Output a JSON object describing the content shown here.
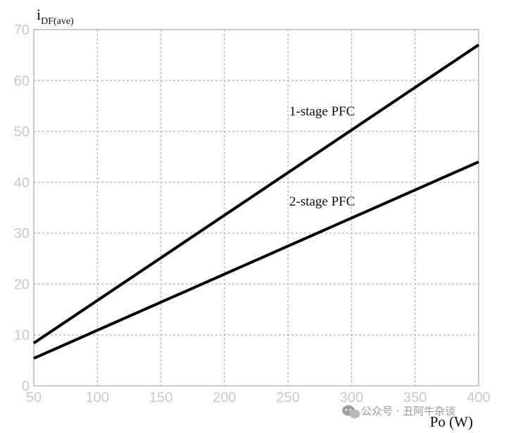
{
  "chart_data": {
    "type": "line",
    "ylabel_main": "i",
    "ylabel_sub": "DF(ave)",
    "xlabel": "Po (W)",
    "xlim": [
      50,
      400
    ],
    "ylim": [
      0,
      70
    ],
    "x_ticks": [
      50,
      100,
      150,
      200,
      250,
      300,
      350,
      400
    ],
    "y_ticks": [
      0,
      10,
      20,
      30,
      40,
      50,
      60,
      70
    ],
    "grid": true,
    "series": [
      {
        "name": "1-stage PFC",
        "x": [
          50,
          400
        ],
        "y": [
          8.4,
          67.0
        ],
        "color": "#000000"
      },
      {
        "name": "2-stage PFC",
        "x": [
          50,
          400
        ],
        "y": [
          5.4,
          44.0
        ],
        "color": "#000000"
      }
    ]
  },
  "watermark": {
    "text": "公众号 · 丑阿牛杂谈",
    "icon": "wechat-icon"
  }
}
